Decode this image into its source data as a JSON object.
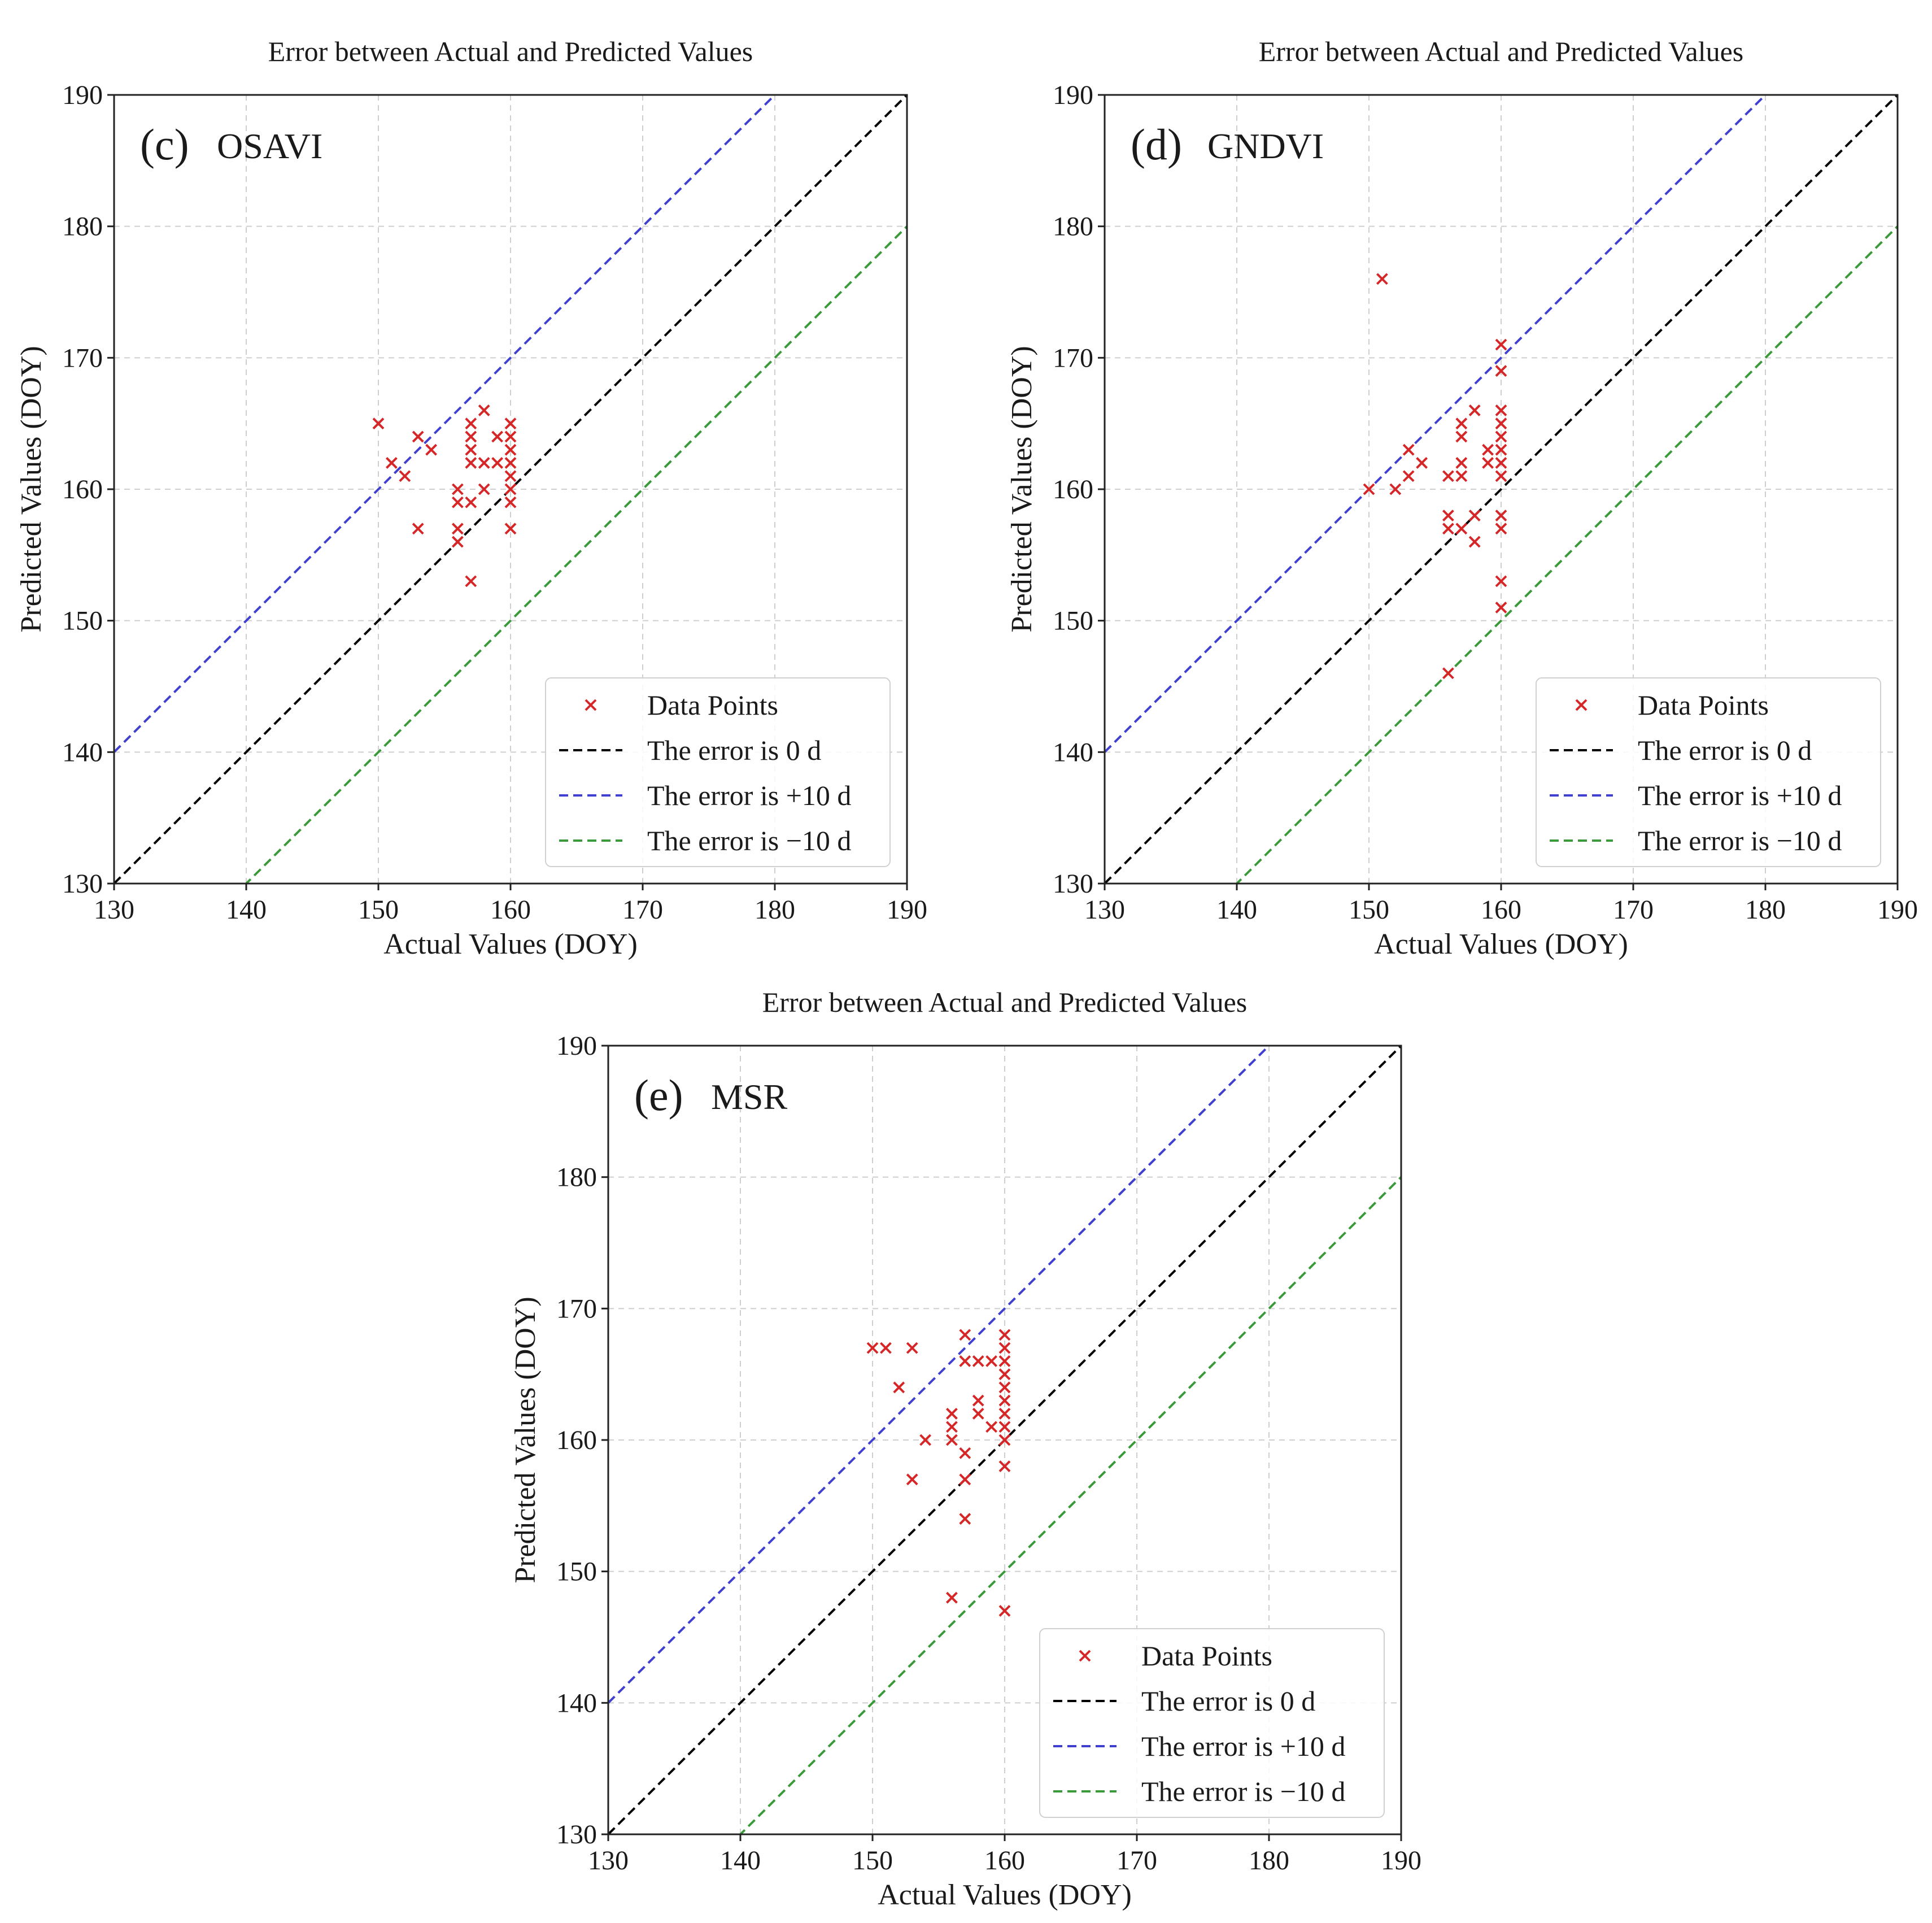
{
  "figure": {
    "description_free": true
  },
  "chart_data": [
    {
      "type": "scatter",
      "panel_label": "(c)",
      "panel_name": "OSAVI",
      "title": "Error between Actual and Predicted Values",
      "xlabel": "Actual Values (DOY)",
      "ylabel": "Predicted Values (DOY)",
      "xlim": [
        130,
        190
      ],
      "ylim": [
        130,
        190
      ],
      "xticks": [
        "130",
        "140",
        "150",
        "160",
        "170",
        "180",
        "190"
      ],
      "yticks": [
        "130",
        "140",
        "150",
        "160",
        "170",
        "180",
        "190"
      ],
      "grid": true,
      "legend_position": "lower-right",
      "legend": [
        "Data Points",
        "The error is 0 d",
        "The error is +10 d",
        "The error is −10 d"
      ],
      "colors": {
        "points": "#d62728",
        "zero": "#000000",
        "plus": "#3f3fd0",
        "minus": "#3a9a3a"
      },
      "reference_lines": [
        0,
        10,
        -10
      ],
      "points": [
        [
          150,
          165
        ],
        [
          151,
          162
        ],
        [
          152,
          161
        ],
        [
          153,
          164
        ],
        [
          153,
          157
        ],
        [
          154,
          163
        ],
        [
          156,
          160
        ],
        [
          156,
          159
        ],
        [
          156,
          157
        ],
        [
          156,
          156
        ],
        [
          157,
          165
        ],
        [
          157,
          164
        ],
        [
          157,
          163
        ],
        [
          157,
          162
        ],
        [
          157,
          159
        ],
        [
          157,
          153
        ],
        [
          158,
          166
        ],
        [
          158,
          162
        ],
        [
          158,
          160
        ],
        [
          159,
          164
        ],
        [
          159,
          162
        ],
        [
          160,
          165
        ],
        [
          160,
          164
        ],
        [
          160,
          163
        ],
        [
          160,
          162
        ],
        [
          160,
          161
        ],
        [
          160,
          160
        ],
        [
          160,
          159
        ],
        [
          160,
          157
        ]
      ]
    },
    {
      "type": "scatter",
      "panel_label": "(d)",
      "panel_name": "GNDVI",
      "title": "Error between Actual and Predicted Values",
      "xlabel": "Actual Values (DOY)",
      "ylabel": "Predicted Values (DOY)",
      "xlim": [
        130,
        190
      ],
      "ylim": [
        130,
        190
      ],
      "xticks": [
        "130",
        "140",
        "150",
        "160",
        "170",
        "180",
        "190"
      ],
      "yticks": [
        "130",
        "140",
        "150",
        "160",
        "170",
        "180",
        "190"
      ],
      "grid": true,
      "legend_position": "lower-right",
      "legend": [
        "Data Points",
        "The error is 0 d",
        "The error is +10 d",
        "The error is −10 d"
      ],
      "colors": {
        "points": "#d62728",
        "zero": "#000000",
        "plus": "#3f3fd0",
        "minus": "#3a9a3a"
      },
      "reference_lines": [
        0,
        10,
        -10
      ],
      "points": [
        [
          150,
          160
        ],
        [
          151,
          176
        ],
        [
          152,
          160
        ],
        [
          153,
          163
        ],
        [
          153,
          161
        ],
        [
          154,
          162
        ],
        [
          156,
          161
        ],
        [
          156,
          158
        ],
        [
          156,
          157
        ],
        [
          156,
          146
        ],
        [
          157,
          165
        ],
        [
          157,
          164
        ],
        [
          157,
          162
        ],
        [
          157,
          161
        ],
        [
          157,
          157
        ],
        [
          158,
          166
        ],
        [
          158,
          158
        ],
        [
          158,
          156
        ],
        [
          159,
          163
        ],
        [
          159,
          162
        ],
        [
          160,
          171
        ],
        [
          160,
          169
        ],
        [
          160,
          166
        ],
        [
          160,
          165
        ],
        [
          160,
          164
        ],
        [
          160,
          163
        ],
        [
          160,
          162
        ],
        [
          160,
          161
        ],
        [
          160,
          158
        ],
        [
          160,
          157
        ],
        [
          160,
          153
        ],
        [
          160,
          151
        ]
      ]
    },
    {
      "type": "scatter",
      "panel_label": "(e)",
      "panel_name": "MSR",
      "title": "Error between Actual and Predicted Values",
      "xlabel": "Actual Values (DOY)",
      "ylabel": "Predicted Values (DOY)",
      "xlim": [
        130,
        190
      ],
      "ylim": [
        130,
        190
      ],
      "xticks": [
        "130",
        "140",
        "150",
        "160",
        "170",
        "180",
        "190"
      ],
      "yticks": [
        "130",
        "140",
        "150",
        "160",
        "170",
        "180",
        "190"
      ],
      "grid": true,
      "legend_position": "lower-right",
      "legend": [
        "Data Points",
        "The error is 0 d",
        "The error is +10 d",
        "The error is −10 d"
      ],
      "colors": {
        "points": "#d62728",
        "zero": "#000000",
        "plus": "#3f3fd0",
        "minus": "#3a9a3a"
      },
      "reference_lines": [
        0,
        10,
        -10
      ],
      "points": [
        [
          150,
          167
        ],
        [
          151,
          167
        ],
        [
          152,
          164
        ],
        [
          153,
          167
        ],
        [
          153,
          157
        ],
        [
          154,
          160
        ],
        [
          156,
          162
        ],
        [
          156,
          161
        ],
        [
          156,
          160
        ],
        [
          156,
          148
        ],
        [
          157,
          168
        ],
        [
          157,
          166
        ],
        [
          157,
          159
        ],
        [
          157,
          157
        ],
        [
          157,
          154
        ],
        [
          158,
          166
        ],
        [
          158,
          163
        ],
        [
          158,
          162
        ],
        [
          159,
          166
        ],
        [
          159,
          161
        ],
        [
          160,
          168
        ],
        [
          160,
          167
        ],
        [
          160,
          166
        ],
        [
          160,
          165
        ],
        [
          160,
          164
        ],
        [
          160,
          163
        ],
        [
          160,
          162
        ],
        [
          160,
          161
        ],
        [
          160,
          160
        ],
        [
          160,
          158
        ],
        [
          160,
          147
        ]
      ]
    }
  ]
}
